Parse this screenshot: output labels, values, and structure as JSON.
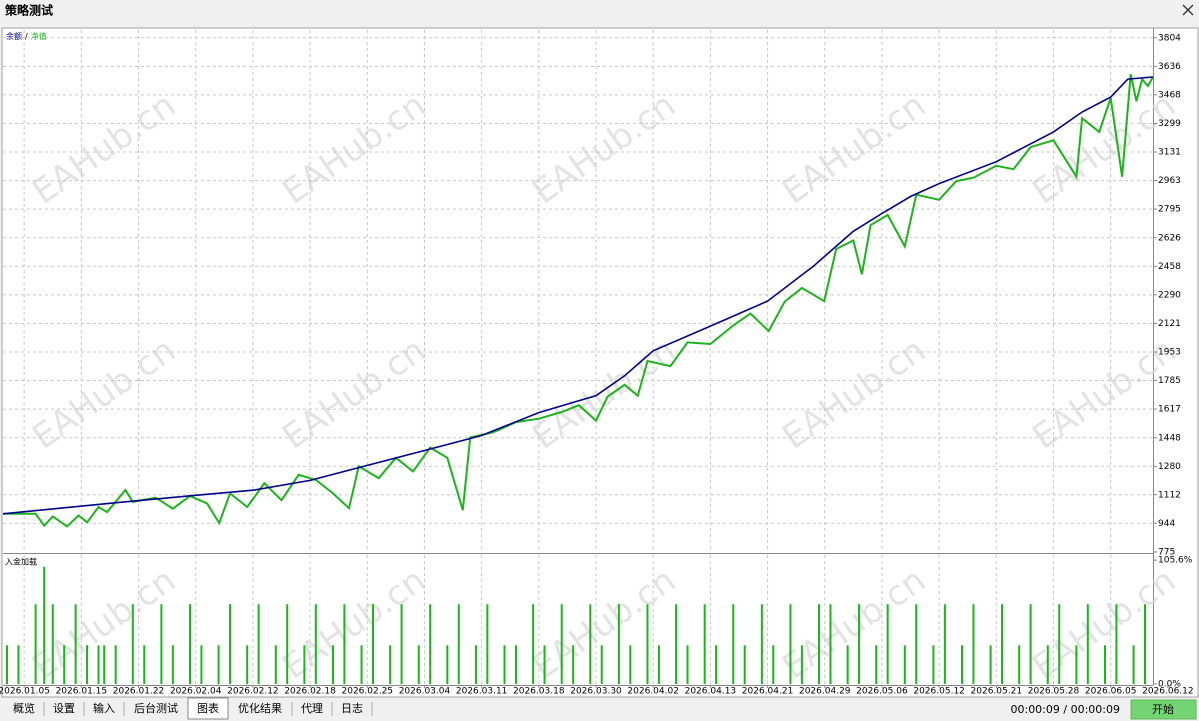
{
  "window": {
    "title": "策略测试"
  },
  "watermark": "EAHub.cn",
  "chart_data": [
    {
      "type": "line",
      "legend_separator": "/",
      "grid": true,
      "xlim": [
        -0.37,
        19.74
      ],
      "xticks": [
        {
          "value": 0,
          "label": "2026.01.05"
        },
        {
          "value": 1,
          "label": "2026.01.15"
        },
        {
          "value": 2,
          "label": "2026.01.22"
        },
        {
          "value": 3,
          "label": "2026.02.04"
        },
        {
          "value": 4,
          "label": "2026.02.12"
        },
        {
          "value": 5,
          "label": "2026.02.18"
        },
        {
          "value": 6,
          "label": "2026.02.25"
        },
        {
          "value": 7,
          "label": "2026.03.04"
        },
        {
          "value": 8,
          "label": "2026.03.11"
        },
        {
          "value": 9,
          "label": "2026.03.18"
        },
        {
          "value": 10,
          "label": "2026.03.30"
        },
        {
          "value": 11,
          "label": "2026.04.02"
        },
        {
          "value": 12,
          "label": "2026.04.13"
        },
        {
          "value": 13,
          "label": "2026.04.21"
        },
        {
          "value": 14,
          "label": "2026.04.29"
        },
        {
          "value": 15,
          "label": "2026.05.06"
        },
        {
          "value": 16,
          "label": "2026.05.12"
        },
        {
          "value": 17,
          "label": "2026.05.21"
        },
        {
          "value": 18,
          "label": "2026.05.28"
        },
        {
          "value": 19,
          "label": "2026.06.05"
        },
        {
          "value": 20,
          "label": "2026.06.12"
        }
      ],
      "ylim": [
        775,
        3850
      ],
      "yticks": [
        775,
        944,
        1112,
        1280,
        1448,
        1617,
        1785,
        1953,
        2121,
        2290,
        2458,
        2626,
        2795,
        2963,
        3131,
        3299,
        3468,
        3636,
        3804
      ],
      "series": [
        {
          "name": "余额",
          "color": "#00008b",
          "x": [
            -0.37,
            1.5,
            3,
            4,
            5,
            6,
            7,
            8,
            9,
            10,
            10.5,
            11,
            12,
            13,
            13.8,
            14.5,
            15,
            15.5,
            16,
            17,
            17.5,
            18,
            18.5,
            19,
            19.3,
            19.74
          ],
          "values": [
            1000,
            1062,
            1109,
            1139,
            1197,
            1285,
            1373,
            1461,
            1596,
            1696,
            1813,
            1960,
            2106,
            2253,
            2458,
            2664,
            2769,
            2869,
            2945,
            3074,
            3162,
            3250,
            3367,
            3455,
            3561,
            3573
          ]
        },
        {
          "name": "净值",
          "color": "#1db31d",
          "x": [
            -0.37,
            0.2,
            0.35,
            0.5,
            0.75,
            0.95,
            1.1,
            1.3,
            1.45,
            1.77,
            1.9,
            2.3,
            2.6,
            2.9,
            3.2,
            3.41,
            3.6,
            3.9,
            4.2,
            4.5,
            4.8,
            5.1,
            5.4,
            5.68,
            5.85,
            6.2,
            6.5,
            6.8,
            7.1,
            7.4,
            7.67,
            7.8,
            8.2,
            8.6,
            9.0,
            9.4,
            9.7,
            10.0,
            10.2,
            10.5,
            10.73,
            10.9,
            11.3,
            11.6,
            12.0,
            12.4,
            12.7,
            13.02,
            13.3,
            13.6,
            13.99,
            14.2,
            14.5,
            14.65,
            14.8,
            15.1,
            15.4,
            15.6,
            16.0,
            16.3,
            16.6,
            17.0,
            17.3,
            17.6,
            18.0,
            18.4,
            18.5,
            18.8,
            19.0,
            19.2,
            19.35,
            19.45,
            19.55,
            19.65,
            19.74
          ],
          "values": [
            1000,
            1000,
            930,
            985,
            925,
            990,
            950,
            1040,
            1010,
            1140,
            1070,
            1095,
            1030,
            1105,
            1060,
            945,
            1120,
            1040,
            1180,
            1080,
            1230,
            1200,
            1120,
            1033,
            1280,
            1210,
            1330,
            1250,
            1390,
            1330,
            1021,
            1450,
            1480,
            1540,
            1560,
            1600,
            1640,
            1549,
            1690,
            1760,
            1696,
            1900,
            1870,
            2010,
            2000,
            2110,
            2180,
            2077,
            2250,
            2330,
            2253,
            2560,
            2610,
            2411,
            2700,
            2760,
            2575,
            2880,
            2850,
            2960,
            2980,
            3050,
            3030,
            3160,
            3200,
            2986,
            3330,
            3250,
            3450,
            2986,
            3590,
            3430,
            3560,
            3520,
            3573
          ]
        }
      ]
    },
    {
      "type": "bar",
      "title": "入金加载",
      "color": "#1db31d",
      "xlim": [
        -0.37,
        19.74
      ],
      "ylim": [
        0,
        110
      ],
      "yticks": [
        {
          "value": 105.6,
          "label": "105.6%"
        },
        {
          "value": 0,
          "label": "0.0%"
        }
      ],
      "x": [
        -0.3,
        -0.1,
        0.2,
        0.35,
        0.5,
        0.7,
        0.9,
        1.1,
        1.3,
        1.4,
        1.6,
        1.9,
        2.1,
        2.4,
        2.6,
        2.9,
        3.1,
        3.4,
        3.6,
        3.9,
        4.1,
        4.4,
        4.6,
        4.9,
        5.1,
        5.4,
        5.6,
        5.9,
        6.1,
        6.4,
        6.6,
        6.9,
        7.1,
        7.4,
        7.6,
        7.9,
        8.1,
        8.4,
        8.6,
        8.9,
        9.1,
        9.4,
        9.6,
        9.9,
        10.1,
        10.4,
        10.6,
        10.9,
        11.1,
        11.4,
        11.6,
        11.9,
        12.1,
        12.4,
        12.6,
        12.9,
        13.1,
        13.4,
        13.6,
        13.9,
        14.1,
        14.4,
        14.6,
        14.9,
        15.1,
        15.4,
        15.6,
        15.9,
        16.1,
        16.4,
        16.6,
        16.9,
        17.1,
        17.4,
        17.6,
        17.9,
        18.1,
        18.4,
        18.6,
        18.9,
        19.1,
        19.4,
        19.6
      ],
      "values": [
        33,
        33,
        68,
        100,
        68,
        33,
        68,
        33,
        33,
        33,
        33,
        68,
        33,
        68,
        33,
        68,
        33,
        33,
        68,
        33,
        68,
        33,
        68,
        33,
        68,
        33,
        68,
        33,
        68,
        33,
        68,
        33,
        68,
        33,
        68,
        33,
        68,
        33,
        33,
        68,
        33,
        68,
        33,
        68,
        33,
        68,
        33,
        68,
        33,
        68,
        33,
        68,
        33,
        68,
        33,
        68,
        33,
        68,
        33,
        68,
        68,
        33,
        68,
        33,
        68,
        33,
        68,
        33,
        68,
        33,
        68,
        33,
        68,
        33,
        68,
        33,
        68,
        33,
        68,
        33,
        68,
        33,
        68
      ]
    }
  ],
  "tabs": [
    "概览",
    "设置",
    "输入",
    "后台测试",
    "图表",
    "优化结果",
    "代理",
    "日志"
  ],
  "active_tab": 4,
  "timer": "00:00:09 / 00:00:09",
  "button": "开始"
}
